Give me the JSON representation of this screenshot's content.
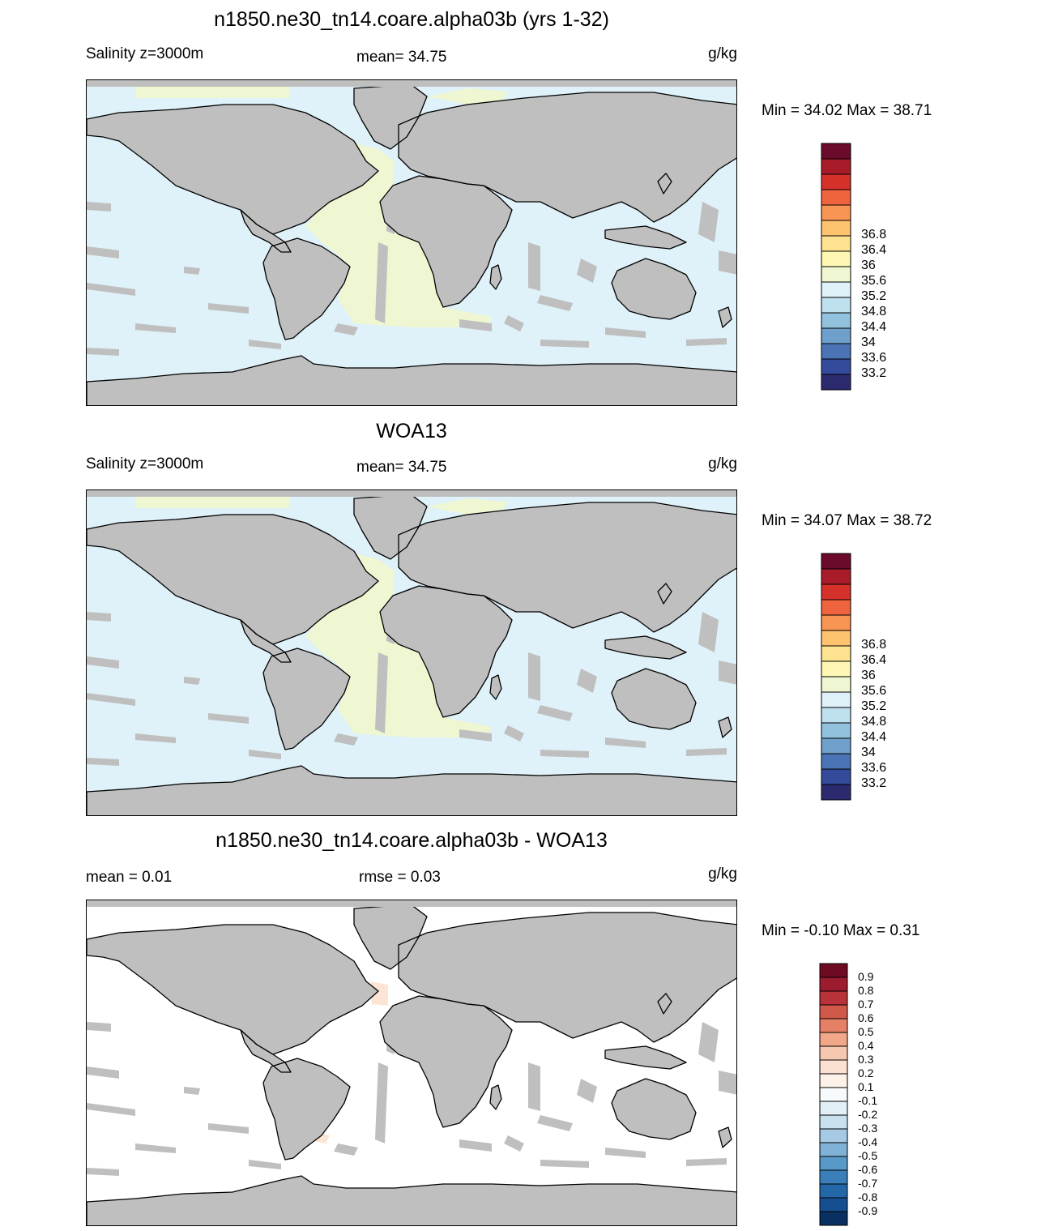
{
  "panels": [
    {
      "title": "n1850.ne30_tn14.coare.alpha03b (yrs 1-32)",
      "left_label": "Salinity z=3000m",
      "center_label": "mean=  34.75",
      "units": "g/kg",
      "minmax": "Min =  34.02 Max =  38.71",
      "ocean_color": "#dff1f9",
      "colorbar": {
        "colors": [
          "#2c2a6e",
          "#344a9b",
          "#4a74b5",
          "#6fa0cc",
          "#92c1de",
          "#bfe0ee",
          "#dff1f9",
          "#eef7d2",
          "#fdf7b3",
          "#fde38f",
          "#fdc36f",
          "#f99553",
          "#ef633e",
          "#d6302b",
          "#a81c2a",
          "#6b0a2a"
        ],
        "labels": [
          "33.2",
          "33.6",
          "34",
          "34.4",
          "34.8",
          "35.2",
          "35.6",
          "36",
          "36.4",
          "36.8"
        ]
      }
    },
    {
      "title": "WOA13",
      "left_label": "Salinity z=3000m",
      "center_label": "mean=  34.75",
      "units": "g/kg",
      "minmax": "Min =  34.07 Max =  38.72",
      "ocean_color": "#dff1f9",
      "colorbar": {
        "colors": [
          "#2c2a6e",
          "#344a9b",
          "#4a74b5",
          "#6fa0cc",
          "#92c1de",
          "#bfe0ee",
          "#dff1f9",
          "#eef7d2",
          "#fdf7b3",
          "#fde38f",
          "#fdc36f",
          "#f99553",
          "#ef633e",
          "#d6302b",
          "#a81c2a",
          "#6b0a2a"
        ],
        "labels": [
          "33.2",
          "33.6",
          "34",
          "34.4",
          "34.8",
          "35.2",
          "35.6",
          "36",
          "36.4",
          "36.8"
        ]
      }
    },
    {
      "title": "n1850.ne30_tn14.coare.alpha03b - WOA13",
      "left_label": "mean =    0.01",
      "center_label": "rmse =    0.03",
      "units": "g/kg",
      "minmax": "Min =  -0.10 Max =    0.31",
      "ocean_color": "#ffffff",
      "colorbar": {
        "colors": [
          "#0a2f61",
          "#164f8f",
          "#2467a9",
          "#3a7fba",
          "#5899c8",
          "#7fb2d6",
          "#a6cae3",
          "#c9e0ee",
          "#e3eff6",
          "#f7fafc",
          "#fdf2ea",
          "#fbe1d2",
          "#f7c8b0",
          "#f1a889",
          "#e57f65",
          "#d05949",
          "#b93239",
          "#9c1b2f",
          "#6f0a23"
        ],
        "labels": [
          "-0.9",
          "-0.8",
          "-0.7",
          "-0.6",
          "-0.5",
          "-0.4",
          "-0.3",
          "-0.2",
          "-0.1",
          "0.1",
          "0.2",
          "0.3",
          "0.4",
          "0.5",
          "0.6",
          "0.7",
          "0.8",
          "0.9"
        ]
      }
    }
  ],
  "land_color": "#bfbfbf",
  "atlantic_color": "#eef7d2",
  "diff_atlantic_color": "#fde5d6"
}
